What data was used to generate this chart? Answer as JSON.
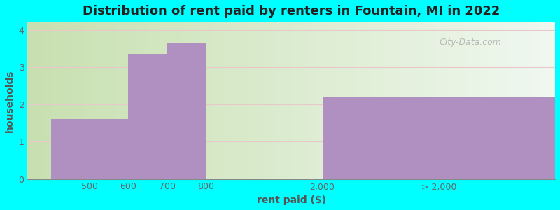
{
  "title": "Distribution of rent paid by renters in Fountain, MI in 2022",
  "xlabel": "rent paid ($)",
  "ylabel": "households",
  "background_color": "#00FFFF",
  "bar_color": "#b090c0",
  "title_fontsize": 13,
  "label_fontsize": 10,
  "tick_fontsize": 9,
  "ylim": [
    0,
    4.2
  ],
  "yticks": [
    0,
    1,
    2,
    3,
    4
  ],
  "categories": [
    "500",
    "600",
    "700",
    "800",
    "2,000",
    "> 2,000"
  ],
  "cat_positions": [
    0,
    1,
    2,
    3,
    4,
    5
  ],
  "bar_data": [
    {
      "cat_idx": 0,
      "span": 1,
      "height": 1.6
    },
    {
      "cat_idx": 1,
      "span": 0.5,
      "height": 3.35
    },
    {
      "cat_idx": 1.5,
      "span": 0.5,
      "height": 3.65
    },
    {
      "cat_idx": 4,
      "span": 2,
      "height": 2.2
    }
  ],
  "xtick_labels": [
    "500",
    "600",
    "700",
    "800",
    "2,000",
    "> 2,000"
  ],
  "xlim": [
    -0.3,
    6.5
  ],
  "watermark": "City-Data.com"
}
